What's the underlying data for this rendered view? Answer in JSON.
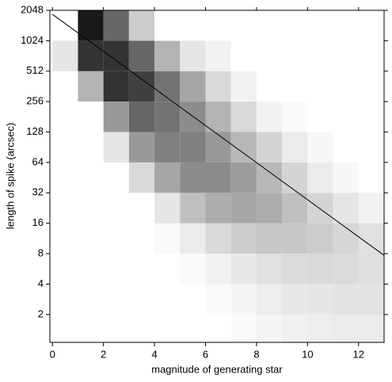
{
  "chart_data": {
    "type": "histogram2d",
    "xlabel": "magnitude of generating star",
    "ylabel": "length of spike (arcsec)",
    "xlim": [
      -0.1,
      13
    ],
    "xticks": [
      0,
      2,
      4,
      6,
      8,
      10,
      12
    ],
    "ylim": [
      1.06,
      2048
    ],
    "yticks": [
      2,
      4,
      8,
      16,
      32,
      64,
      128,
      256,
      512,
      1024,
      2048
    ],
    "log_y": true,
    "xbins": [
      0,
      1,
      2,
      3,
      4,
      5,
      6,
      7,
      8,
      9,
      10,
      11,
      12,
      13
    ],
    "ybins": [
      1,
      2,
      4,
      8,
      16,
      32,
      64,
      128,
      256,
      512,
      1024,
      2048
    ],
    "z": [
      [
        0,
        0,
        0,
        0,
        0,
        0,
        0,
        0.02,
        0.04,
        0.06,
        0.07,
        0.08,
        0.08
      ],
      [
        0,
        0,
        0,
        0,
        0,
        0,
        0.02,
        0.04,
        0.07,
        0.09,
        0.1,
        0.11,
        0.11
      ],
      [
        0,
        0,
        0,
        0,
        0,
        0.02,
        0.05,
        0.09,
        0.12,
        0.14,
        0.15,
        0.14,
        0.13
      ],
      [
        0,
        0,
        0,
        0,
        0.02,
        0.08,
        0.15,
        0.2,
        0.22,
        0.22,
        0.2,
        0.16,
        0.12
      ],
      [
        0,
        0,
        0,
        0,
        0.1,
        0.25,
        0.32,
        0.35,
        0.32,
        0.25,
        0.17,
        0.1,
        0.05
      ],
      [
        0,
        0,
        0,
        0.15,
        0.35,
        0.45,
        0.45,
        0.38,
        0.28,
        0.17,
        0.08,
        0.03,
        0
      ],
      [
        0,
        0,
        0.1,
        0.4,
        0.5,
        0.5,
        0.4,
        0.28,
        0.17,
        0.08,
        0.03,
        0,
        0
      ],
      [
        0,
        0,
        0.4,
        0.6,
        0.55,
        0.45,
        0.3,
        0.15,
        0.05,
        0.02,
        0,
        0,
        0
      ],
      [
        0,
        0.3,
        0.8,
        0.75,
        0.55,
        0.35,
        0.15,
        0.05,
        0,
        0,
        0,
        0,
        0
      ],
      [
        0.1,
        0.8,
        0.8,
        0.6,
        0.3,
        0.1,
        0.05,
        0,
        0,
        0,
        0,
        0,
        0
      ],
      [
        0,
        0.9,
        0.6,
        0.2,
        0,
        0,
        0,
        0,
        0,
        0,
        0,
        0,
        0
      ]
    ],
    "fit_line": {
      "x": [
        0,
        13
      ],
      "values": [
        1870,
        7.7
      ],
      "color": "#000000"
    }
  }
}
